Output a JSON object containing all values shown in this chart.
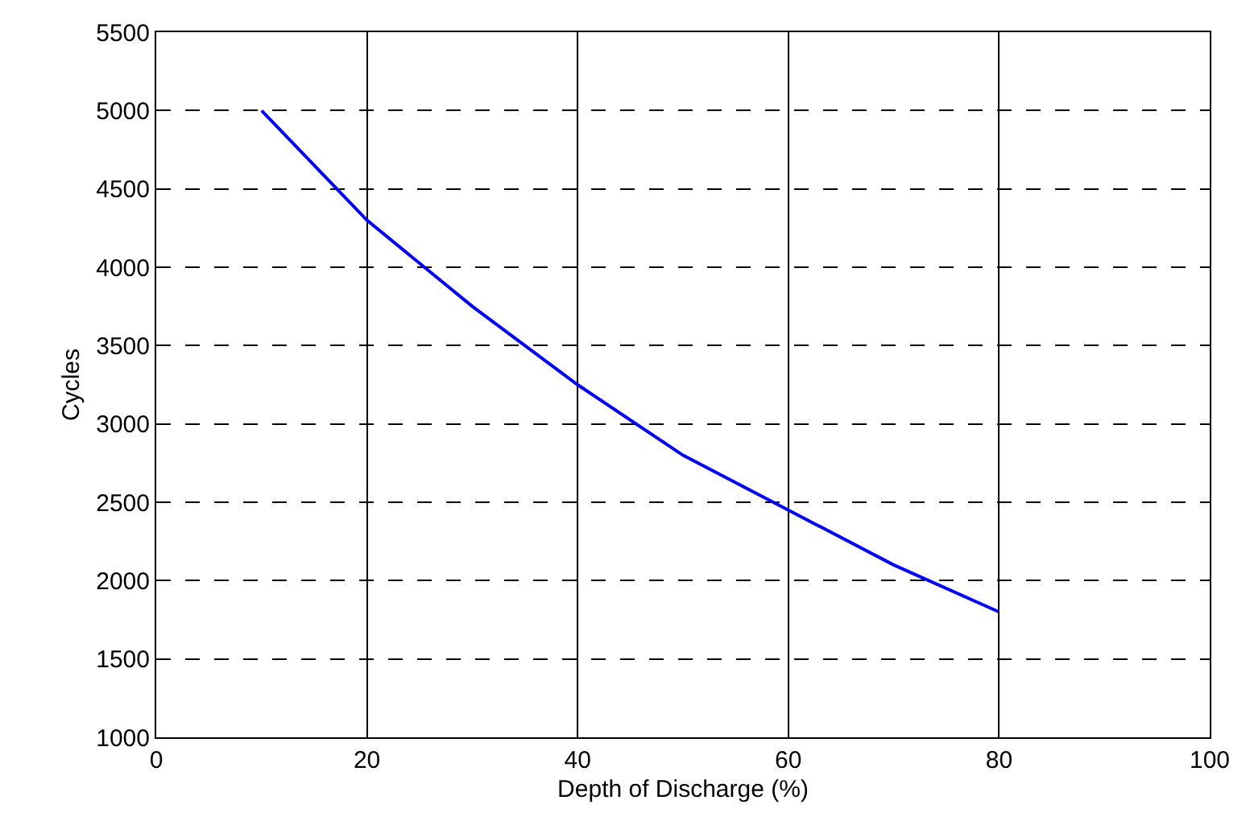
{
  "chart_data": {
    "type": "line",
    "xlabel": "Depth of Discharge (%)",
    "ylabel": "Cycles",
    "x": [
      10,
      20,
      30,
      40,
      50,
      60,
      70,
      80
    ],
    "series": [
      {
        "color": "#0000ff",
        "values": [
          5000,
          4300,
          3750,
          3250,
          2800,
          2450,
          2100,
          1800
        ]
      }
    ],
    "xlim": [
      0,
      100
    ],
    "xticks": [
      0,
      20,
      40,
      60,
      80,
      100
    ],
    "ylim": [
      1000,
      5500
    ],
    "yticks": [
      1000,
      1500,
      2000,
      2500,
      3000,
      3500,
      4000,
      4500,
      5000,
      5500
    ],
    "grid": true,
    "marker": "none",
    "line_style": "solid"
  }
}
